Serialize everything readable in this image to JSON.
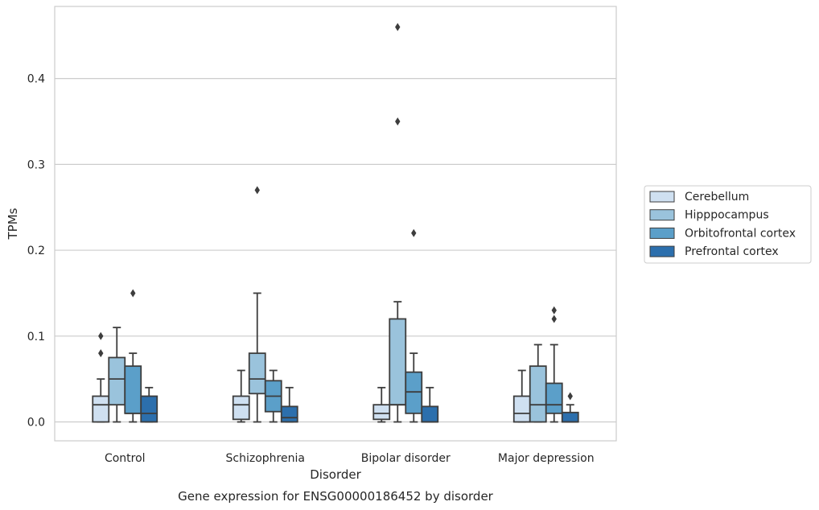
{
  "chart_data": {
    "type": "box",
    "xlabel": "Disorder",
    "ylabel": "TPMs",
    "caption": "Gene expression for ENSG00000186452 by disorder",
    "categories": [
      "Control",
      "Schizophrenia",
      "Bipolar disorder",
      "Major depression"
    ],
    "y_ticks": [
      "0.0",
      "0.1",
      "0.2",
      "0.3",
      "0.4"
    ],
    "y_tick_values": [
      0.0,
      0.1,
      0.2,
      0.3,
      0.4
    ],
    "ylim": [
      -0.022,
      0.484
    ],
    "grid": "horizontal",
    "legend_position": "outside-right",
    "series": [
      {
        "name": "Cerebellum",
        "color": "#cfe0f1",
        "boxes": [
          {
            "whisker_low": 0.0,
            "q1": 0.0,
            "median": 0.02,
            "q3": 0.03,
            "whisker_high": 0.05,
            "outliers": [
              0.08,
              0.1
            ]
          },
          {
            "whisker_low": 0.0,
            "q1": 0.003,
            "median": 0.02,
            "q3": 0.03,
            "whisker_high": 0.06,
            "outliers": []
          },
          {
            "whisker_low": 0.0,
            "q1": 0.003,
            "median": 0.01,
            "q3": 0.02,
            "whisker_high": 0.04,
            "outliers": []
          },
          {
            "whisker_low": 0.0,
            "q1": 0.0,
            "median": 0.01,
            "q3": 0.03,
            "whisker_high": 0.06,
            "outliers": []
          }
        ]
      },
      {
        "name": "Hipppocampus",
        "color": "#9ac3dc",
        "boxes": [
          {
            "whisker_low": 0.0,
            "q1": 0.02,
            "median": 0.05,
            "q3": 0.075,
            "whisker_high": 0.11,
            "outliers": []
          },
          {
            "whisker_low": 0.0,
            "q1": 0.033,
            "median": 0.05,
            "q3": 0.08,
            "whisker_high": 0.15,
            "outliers": [
              0.27
            ]
          },
          {
            "whisker_low": 0.0,
            "q1": 0.02,
            "median": 0.02,
            "q3": 0.12,
            "whisker_high": 0.14,
            "outliers": [
              0.35,
              0.46
            ]
          },
          {
            "whisker_low": 0.0,
            "q1": 0.0,
            "median": 0.02,
            "q3": 0.065,
            "whisker_high": 0.09,
            "outliers": []
          }
        ]
      },
      {
        "name": "Orbitofrontal cortex",
        "color": "#5b9fc9",
        "boxes": [
          {
            "whisker_low": 0.0,
            "q1": 0.01,
            "median": 0.01,
            "q3": 0.065,
            "whisker_high": 0.08,
            "outliers": [
              0.15
            ]
          },
          {
            "whisker_low": 0.0,
            "q1": 0.012,
            "median": 0.03,
            "q3": 0.048,
            "whisker_high": 0.06,
            "outliers": []
          },
          {
            "whisker_low": 0.0,
            "q1": 0.01,
            "median": 0.035,
            "q3": 0.058,
            "whisker_high": 0.08,
            "outliers": [
              0.22
            ]
          },
          {
            "whisker_low": 0.0,
            "q1": 0.01,
            "median": 0.02,
            "q3": 0.045,
            "whisker_high": 0.09,
            "outliers": [
              0.12,
              0.13
            ]
          }
        ]
      },
      {
        "name": "Prefrontal cortex",
        "color": "#2c6fad",
        "boxes": [
          {
            "whisker_low": 0.0,
            "q1": 0.0,
            "median": 0.01,
            "q3": 0.03,
            "whisker_high": 0.04,
            "outliers": []
          },
          {
            "whisker_low": 0.0,
            "q1": 0.0,
            "median": 0.005,
            "q3": 0.018,
            "whisker_high": 0.04,
            "outliers": []
          },
          {
            "whisker_low": 0.0,
            "q1": 0.0,
            "median": 0.0,
            "q3": 0.018,
            "whisker_high": 0.04,
            "outliers": []
          },
          {
            "whisker_low": 0.0,
            "q1": 0.0,
            "median": 0.0,
            "q3": 0.011,
            "whisker_high": 0.02,
            "outliers": [
              0.03
            ]
          }
        ]
      }
    ]
  }
}
